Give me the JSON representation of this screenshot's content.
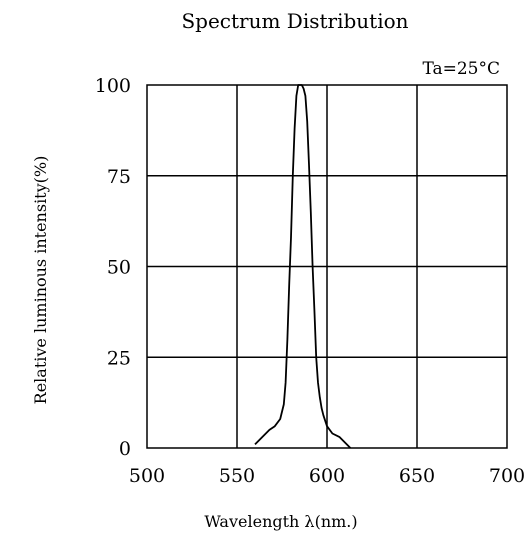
{
  "chart_data": {
    "type": "line",
    "title": "Spectrum Distribution",
    "annotation": "Ta=25°C",
    "xlabel": "Wavelength  λ(nm.)",
    "ylabel": "Relative luminous intensity(%)",
    "xlim": [
      500,
      700
    ],
    "ylim": [
      0,
      100
    ],
    "x_ticks": [
      500,
      550,
      600,
      650,
      700
    ],
    "y_ticks": [
      0,
      25,
      50,
      75,
      100
    ],
    "x_tick_labels": [
      "500",
      "550",
      "600",
      "650",
      "700"
    ],
    "y_tick_labels": [
      "0",
      "25",
      "50",
      "75",
      "100"
    ],
    "grid": true,
    "line_color": "#000000",
    "series": [
      {
        "x": [
          560,
          564,
          568,
          571,
          574,
          576,
          577,
          578,
          579,
          580,
          581,
          582,
          583,
          584,
          585,
          586,
          587,
          588,
          589,
          590,
          591,
          592,
          593,
          594,
          595,
          596,
          597,
          598,
          600,
          603,
          607,
          611,
          613
        ],
        "y": [
          1,
          3,
          5,
          6,
          8,
          12,
          18,
          30,
          45,
          58,
          75,
          88,
          97,
          100,
          100,
          100,
          99,
          97,
          90,
          78,
          65,
          50,
          38,
          25,
          18,
          14,
          11,
          9,
          6,
          4,
          3,
          1,
          0
        ]
      }
    ]
  }
}
